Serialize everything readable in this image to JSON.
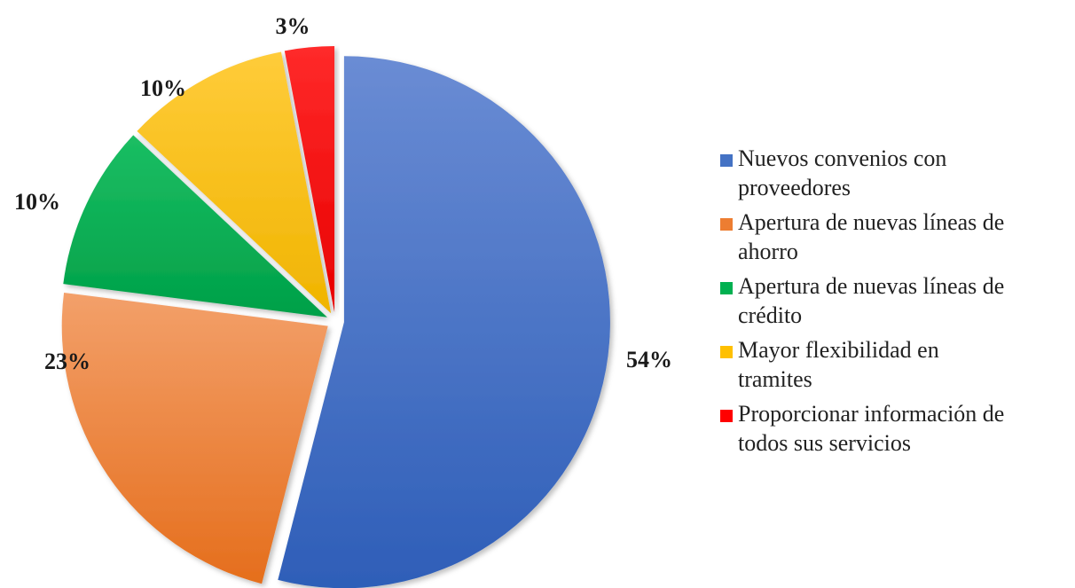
{
  "chart_data": {
    "type": "pie",
    "title": "",
    "categories": [
      "Nuevos convenios con proveedores",
      "Apertura de nuevas líneas de ahorro",
      "Apertura de nuevas líneas de crédito",
      "Mayor flexibilidad en tramites",
      "Proporcionar información de todos sus servicios"
    ],
    "values": [
      54,
      23,
      10,
      10,
      3
    ],
    "labels": [
      "54%",
      "23%",
      "10%",
      "10%",
      "3%"
    ],
    "colors": [
      "#4472C4",
      "#ED7D31",
      "#00B050",
      "#FFC000",
      "#FF0000"
    ],
    "exploded": true,
    "legend": {
      "position": "right",
      "items": [
        {
          "lines": [
            "Nuevos convenios con",
            "proveedores"
          ]
        },
        {
          "lines": [
            "Apertura de nuevas líneas de",
            "ahorro"
          ]
        },
        {
          "lines": [
            "Apertura de nuevas líneas de",
            "crédito"
          ]
        },
        {
          "lines": [
            "Mayor flexibilidad en",
            "tramites"
          ]
        },
        {
          "lines": [
            "Proporcionar información de",
            "todos sus servicios"
          ]
        }
      ]
    }
  }
}
